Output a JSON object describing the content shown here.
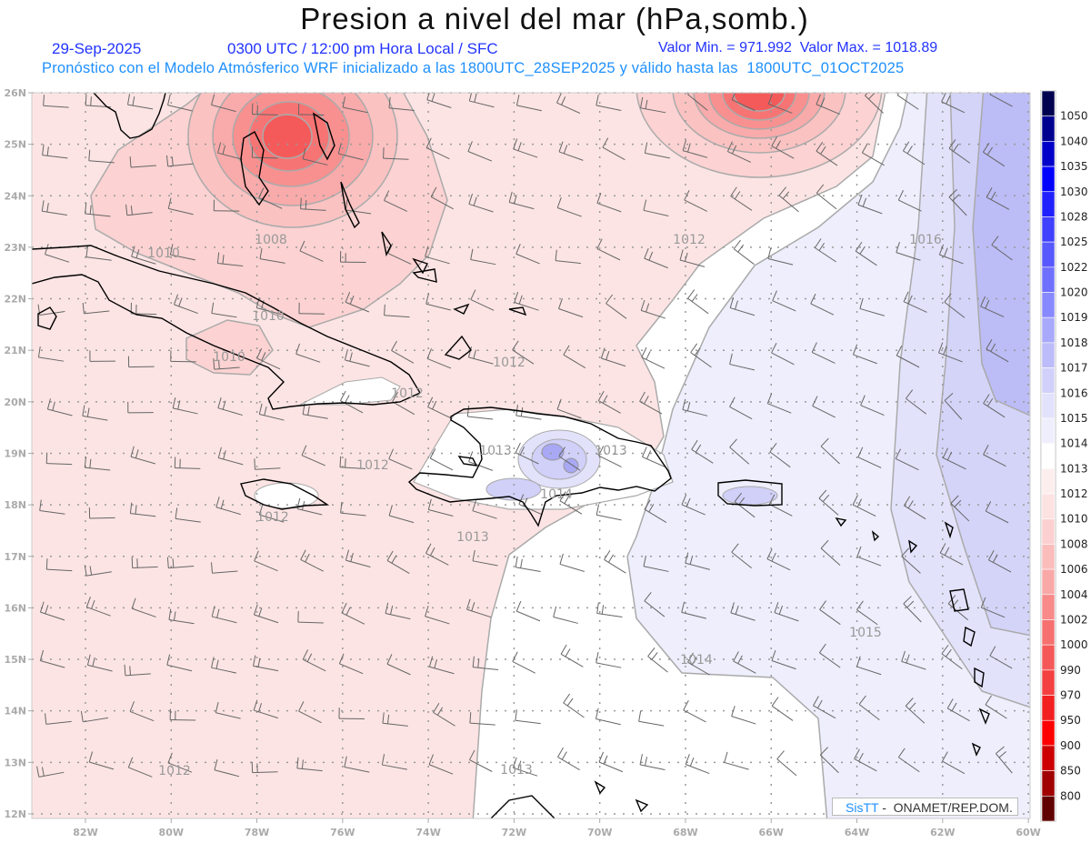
{
  "header": {
    "title": "Presion a nivel del mar (hPa,somb.)",
    "date": "29-Sep-2025",
    "time": "0300 UTC / 12:00 pm Hora Local / SFC",
    "min_max": "Valor Min. = 971.992  Valor Max. = 1018.89",
    "subtitle": "Pronóstico con el Modelo Atmósferico WRF inicializado a las 1800UTC_28SEP2025 y válido hasta las  1800UTC_01OCT2025"
  },
  "axes": {
    "lat_labels": [
      "26N",
      "25N",
      "24N",
      "23N",
      "22N",
      "21N",
      "20N",
      "19N",
      "18N",
      "17N",
      "16N",
      "15N",
      "14N",
      "13N",
      "12N"
    ],
    "lon_labels": [
      "82W",
      "80W",
      "78W",
      "76W",
      "74W",
      "72W",
      "70W",
      "68W",
      "66W",
      "64W",
      "62W",
      "60W"
    ]
  },
  "contour_labels": [
    "1008",
    "1010",
    "1010",
    "1010",
    "1012",
    "1012",
    "1013",
    "1013",
    "1012",
    "1014",
    "1012",
    "1013",
    "1012",
    "1016",
    "1015",
    "1014",
    "1012",
    "1013"
  ],
  "colorbar": {
    "labels": [
      "1050",
      "1040",
      "1035",
      "1030",
      "1028",
      "1025",
      "1022",
      "1020",
      "1019",
      "1018",
      "1017",
      "1016",
      "1015",
      "1014",
      "1013",
      "1012",
      "1010",
      "1008",
      "1006",
      "1004",
      "1002",
      "1000",
      "990",
      "970",
      "950",
      "900",
      "850",
      "800"
    ],
    "colors": [
      "#000050",
      "#000090",
      "#0000c8",
      "#0000ff",
      "#2020ff",
      "#4040ff",
      "#5858ff",
      "#7070ff",
      "#8888ff",
      "#a8a8fc",
      "#bcbcfa",
      "#d0d0fa",
      "#e2e2fc",
      "#eeeefd",
      "#ffffff",
      "#fdeeee",
      "#fde2e2",
      "#fcd0d0",
      "#fbbcbc",
      "#f9a8a8",
      "#f88a8a",
      "#f67070",
      "#f55858",
      "#f44040",
      "#f22020",
      "#ff0000",
      "#cc0000",
      "#a00000",
      "#600000"
    ]
  },
  "logo": {
    "brand": "SisTT",
    "org": " -  ONAMET/REP.DOM."
  },
  "shading_colors": {
    "p1012": "#fde4e4",
    "p1010": "#fcd2d2",
    "p1008": "#fbc2c2",
    "p1006": "#f9aaaa",
    "p1004": "#f89090",
    "p1002": "#f77474",
    "p1000": "#f55a5a",
    "p1013": "#ffffff",
    "p1014": "#eeeefd",
    "p1015": "#e2e2fb",
    "p1016": "#d4d4f9",
    "p1017": "#bcbcf6"
  }
}
